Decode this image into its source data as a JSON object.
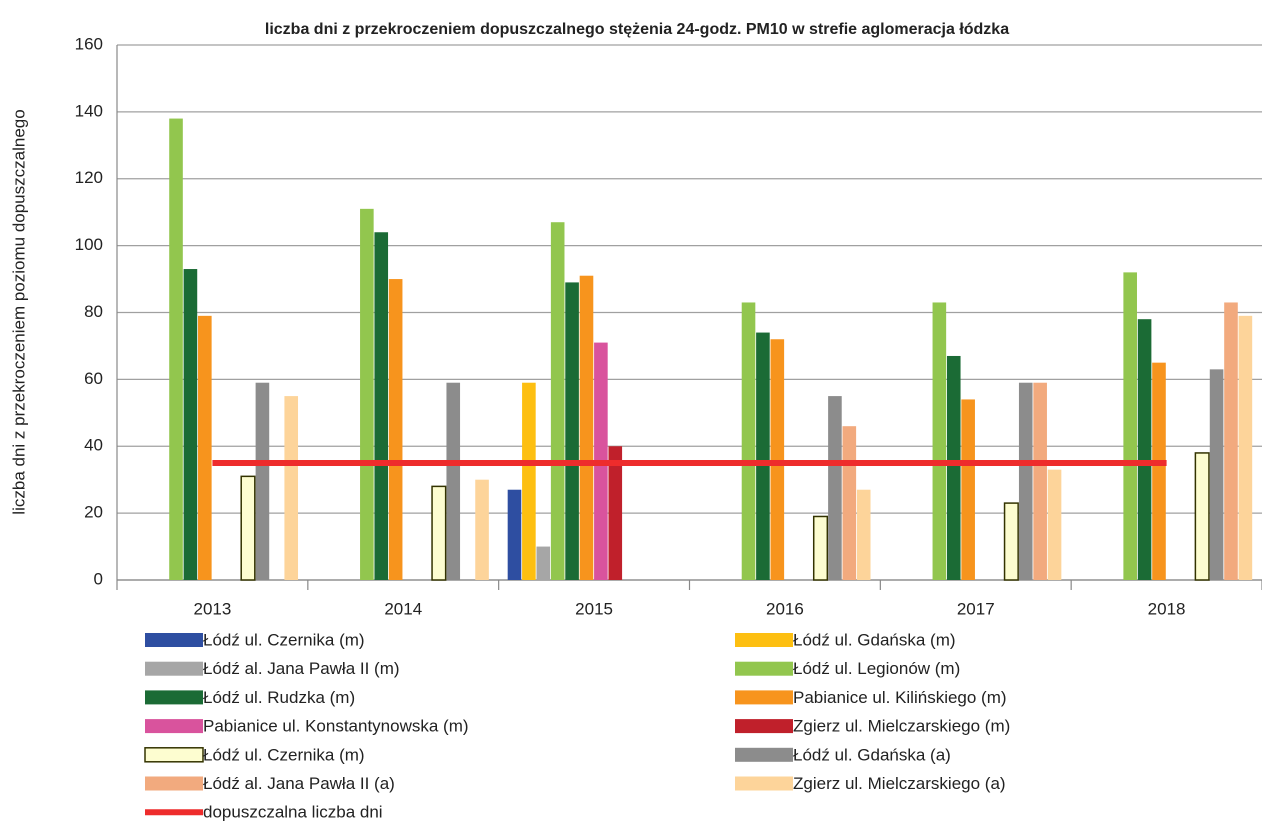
{
  "chart_data": {
    "type": "bar",
    "title": "liczba dni z przekroczeniem dopuszczalnego stężenia 24-godz. PM10  w strefie aglomeracja łódzka",
    "ylabel": "liczba dni z przekroczeniem poziomu dopuszczalnego",
    "categories": [
      "2013",
      "2014",
      "2015",
      "2016",
      "2017",
      "2018"
    ],
    "ylim": [
      0,
      160
    ],
    "yticks": [
      0,
      20,
      40,
      60,
      80,
      100,
      120,
      140,
      160
    ],
    "grid": true,
    "series": [
      {
        "name": "Łódź ul. Czernika (m)",
        "color": "#2e4ea1",
        "values": [
          null,
          null,
          27,
          null,
          null,
          null
        ]
      },
      {
        "name": "Łódź ul. Gdańska (m)",
        "color": "#fdbf11",
        "values": [
          null,
          null,
          59,
          null,
          null,
          null
        ]
      },
      {
        "name": "Łódź al. Jana Pawła II (m)",
        "color": "#a6a6a6",
        "values": [
          null,
          null,
          10,
          null,
          null,
          null
        ]
      },
      {
        "name": "Łódź ul. Legionów (m)",
        "color": "#92c64e",
        "values": [
          138,
          111,
          107,
          83,
          83,
          92
        ]
      },
      {
        "name": "Łódź ul. Rudzka (m)",
        "color": "#1b6b35",
        "values": [
          93,
          104,
          89,
          74,
          67,
          78
        ]
      },
      {
        "name": "Pabianice ul. Kilińskiego (m)",
        "color": "#f7941d",
        "values": [
          79,
          90,
          91,
          72,
          54,
          65
        ]
      },
      {
        "name": "Pabianice ul. Konstantynowska (m)",
        "color": "#d9539d",
        "values": [
          null,
          null,
          71,
          null,
          null,
          null
        ]
      },
      {
        "name": "Zgierz ul. Mielczarskiego (m)",
        "color": "#c0202b",
        "values": [
          null,
          null,
          40,
          null,
          null,
          null
        ]
      },
      {
        "name": "Łódź ul. Czernika (m)",
        "color": "#fdfdd0",
        "edgecolor": "#333300",
        "values": [
          31,
          28,
          null,
          19,
          23,
          38
        ]
      },
      {
        "name": "Łódź ul. Gdańska (a)",
        "color": "#8c8c8c",
        "values": [
          59,
          59,
          null,
          55,
          59,
          63
        ]
      },
      {
        "name": "Łódź al. Jana Pawła II (a)",
        "color": "#f2aa7e",
        "values": [
          null,
          null,
          null,
          46,
          59,
          83
        ]
      },
      {
        "name": "Zgierz ul. Mielczarskiego (a)",
        "color": "#fdd49a",
        "values": [
          55,
          30,
          null,
          27,
          33,
          79
        ]
      },
      {
        "name": "dopuszczalna liczba dni",
        "type": "line",
        "color": "#ee2c2c",
        "values": [
          35,
          35,
          35,
          35,
          35,
          35
        ]
      }
    ]
  }
}
